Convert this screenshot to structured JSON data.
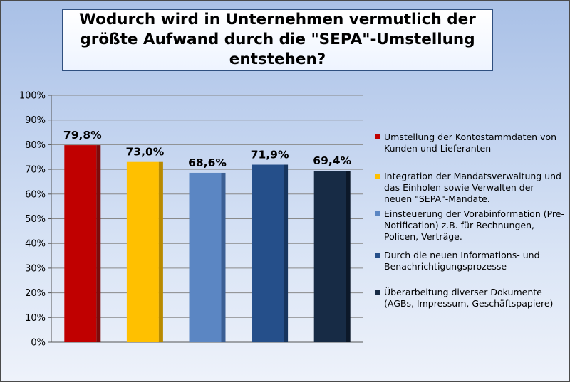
{
  "chart_data": {
    "type": "bar",
    "title": "Wodurch wird in Unternehmen vermutlich der\ngrößte Aufwand durch die \"SEPA\"-Umstellung\nentstehen?",
    "xlabel": "",
    "ylabel": "",
    "ylim": [
      0,
      100
    ],
    "ytick_labels": [
      "0%",
      "10%",
      "20%",
      "30%",
      "40%",
      "50%",
      "60%",
      "70%",
      "80%",
      "90%",
      "100%"
    ],
    "grid": true,
    "legend_position": "right",
    "series": [
      {
        "name": "Umstellung der Kontostammdaten von Kunden und Lieferanten",
        "value": 79.8,
        "label": "79,8%",
        "color": "#c00000",
        "side_color": "#7f0a0a"
      },
      {
        "name": "Integration der Mandatsverwaltung und das Einholen sowie Verwalten der neuen \"SEPA\"-Mandate.",
        "value": 73.0,
        "label": "73,0%",
        "color": "#ffc000",
        "side_color": "#b88a00"
      },
      {
        "name": "Einsteuerung der Vorabinformation (Pre-Notification) z.B. für Rechnungen, Policen, Verträge.",
        "value": 68.6,
        "label": "68,6%",
        "color": "#5b86c3",
        "side_color": "#3b5f94"
      },
      {
        "name": "Durch die neuen Informations- und Benachrichtigungsprozesse",
        "value": 71.9,
        "label": "71,9%",
        "color": "#254f8a",
        "side_color": "#17355e"
      },
      {
        "name": "Überarbeitung diverser Dokumente (AGBs, Impressum, Geschäftspapiere)",
        "value": 69.4,
        "label": "69,4%",
        "color": "#172b45",
        "side_color": "#0c1829"
      }
    ]
  }
}
